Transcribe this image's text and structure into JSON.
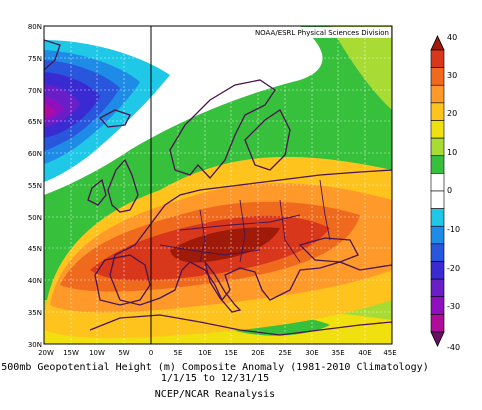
{
  "credit": "NOAA/ESRL Physical Sciences Division",
  "caption": {
    "line1": "500mb Geopotential Height (m) Composite Anomaly (1981-2010 Climatology)",
    "line2": "1/1/15  to 12/31/15",
    "line3": "NCEP/NCAR Reanalysis"
  },
  "map": {
    "lon_labels": [
      "20W",
      "15W",
      "10W",
      "5W",
      "0",
      "5E",
      "10E",
      "15E",
      "20E",
      "25E",
      "30E",
      "35E",
      "40E",
      "45E"
    ],
    "lat_labels": [
      "80N",
      "75N",
      "70N",
      "65N",
      "60N",
      "55N",
      "50N",
      "45N",
      "40N",
      "35N",
      "30N"
    ],
    "lon_range": [
      -20,
      45
    ],
    "lat_range": [
      30,
      80
    ],
    "field": "500mb geopotential height anomaly",
    "units": "m",
    "highlights": {
      "max_anomaly_region": "central Europe / Balkans",
      "min_anomaly_region": "Norwegian Sea / Greenland Sea"
    }
  },
  "colorbar": {
    "ticks": [
      "40",
      "30",
      "20",
      "10",
      "0",
      "-10",
      "-20",
      "-30",
      "-40"
    ],
    "colors": [
      "#a01a0a",
      "#d8371c",
      "#f06a1e",
      "#ff9a2a",
      "#ffc31e",
      "#f0e010",
      "#a8dc34",
      "#36c03c",
      "#ffffff",
      "#ffffff",
      "#1ec8e6",
      "#1e8ce6",
      "#2856dc",
      "#3a2ad2",
      "#6a1ec8",
      "#9010c0",
      "#b00c9c",
      "#6a1064"
    ]
  }
}
